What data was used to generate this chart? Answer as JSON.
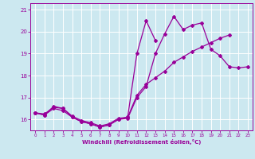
{
  "xlabel": "Windchill (Refroidissement éolien,°C)",
  "bg_color": "#cce8f0",
  "line_color": "#990099",
  "grid_color": "#ffffff",
  "xlim": [
    -0.5,
    23.5
  ],
  "ylim": [
    15.5,
    21.3
  ],
  "xticks": [
    0,
    1,
    2,
    3,
    4,
    5,
    6,
    7,
    8,
    9,
    10,
    11,
    12,
    13,
    14,
    15,
    16,
    17,
    18,
    19,
    20,
    21,
    22,
    23
  ],
  "yticks": [
    16,
    17,
    18,
    19,
    20,
    21
  ],
  "series1_x": [
    0,
    1,
    2,
    3,
    4,
    5,
    6,
    7,
    8,
    9,
    10,
    11,
    12,
    13,
    14,
    15,
    16,
    17,
    18,
    19,
    20,
    21,
    22,
    23
  ],
  "series1_y": [
    16.3,
    16.2,
    16.6,
    16.5,
    16.1,
    15.9,
    15.8,
    15.65,
    15.75,
    16.0,
    16.05,
    17.0,
    17.5,
    19.0,
    19.9,
    20.7,
    20.1,
    20.3,
    20.4,
    19.2,
    18.9,
    18.4,
    18.35,
    18.4
  ],
  "series2_x": [
    0,
    1,
    2,
    3,
    4,
    5,
    6,
    7,
    8,
    9,
    10,
    11,
    12,
    13
  ],
  "series2_y": [
    16.3,
    16.2,
    16.5,
    16.4,
    16.1,
    15.9,
    15.8,
    15.65,
    15.75,
    16.0,
    16.1,
    19.0,
    20.5,
    19.6
  ],
  "series3_x": [
    0,
    1,
    2,
    3,
    4,
    5,
    6,
    7,
    8,
    9,
    10,
    11,
    12,
    13,
    14,
    15,
    16,
    17,
    18,
    19,
    20,
    21
  ],
  "series3_y": [
    16.3,
    16.25,
    16.55,
    16.5,
    16.15,
    15.95,
    15.85,
    15.7,
    15.8,
    16.05,
    16.1,
    17.1,
    17.6,
    17.9,
    18.2,
    18.6,
    18.85,
    19.1,
    19.3,
    19.5,
    19.7,
    19.85
  ]
}
